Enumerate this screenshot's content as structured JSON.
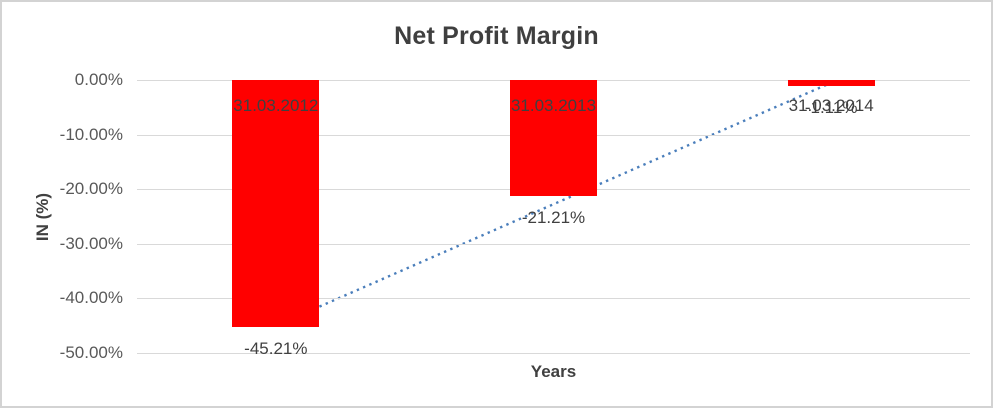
{
  "chart_data": {
    "type": "bar",
    "title": "Net Profit Margin",
    "xlabel": "Years",
    "ylabel": "IN (%)",
    "categories": [
      "31.03.2012",
      "31.03.2013",
      "31.03.2014"
    ],
    "values": [
      -45.21,
      -21.21,
      -1.11
    ],
    "value_labels": [
      "-45.21%",
      "-21.21%",
      "-1.11%"
    ],
    "ylim": [
      -50,
      0
    ],
    "yticks": [
      0,
      -10,
      -20,
      -30,
      -40,
      -50
    ],
    "ytick_labels": [
      "0.00%",
      "-10.00%",
      "-20.00%",
      "-30.00%",
      "-40.00%",
      "-50.00%"
    ],
    "grid": true,
    "legend_position": "none",
    "bar_color": "#ff0000",
    "gridline_color": "#d9d9d9",
    "trendline": {
      "style": "dotted",
      "color": "#4a7ebb",
      "start": {
        "category_index": 0,
        "value": -45.0
      },
      "end": {
        "category_index": 2,
        "value": -0.5
      }
    }
  }
}
